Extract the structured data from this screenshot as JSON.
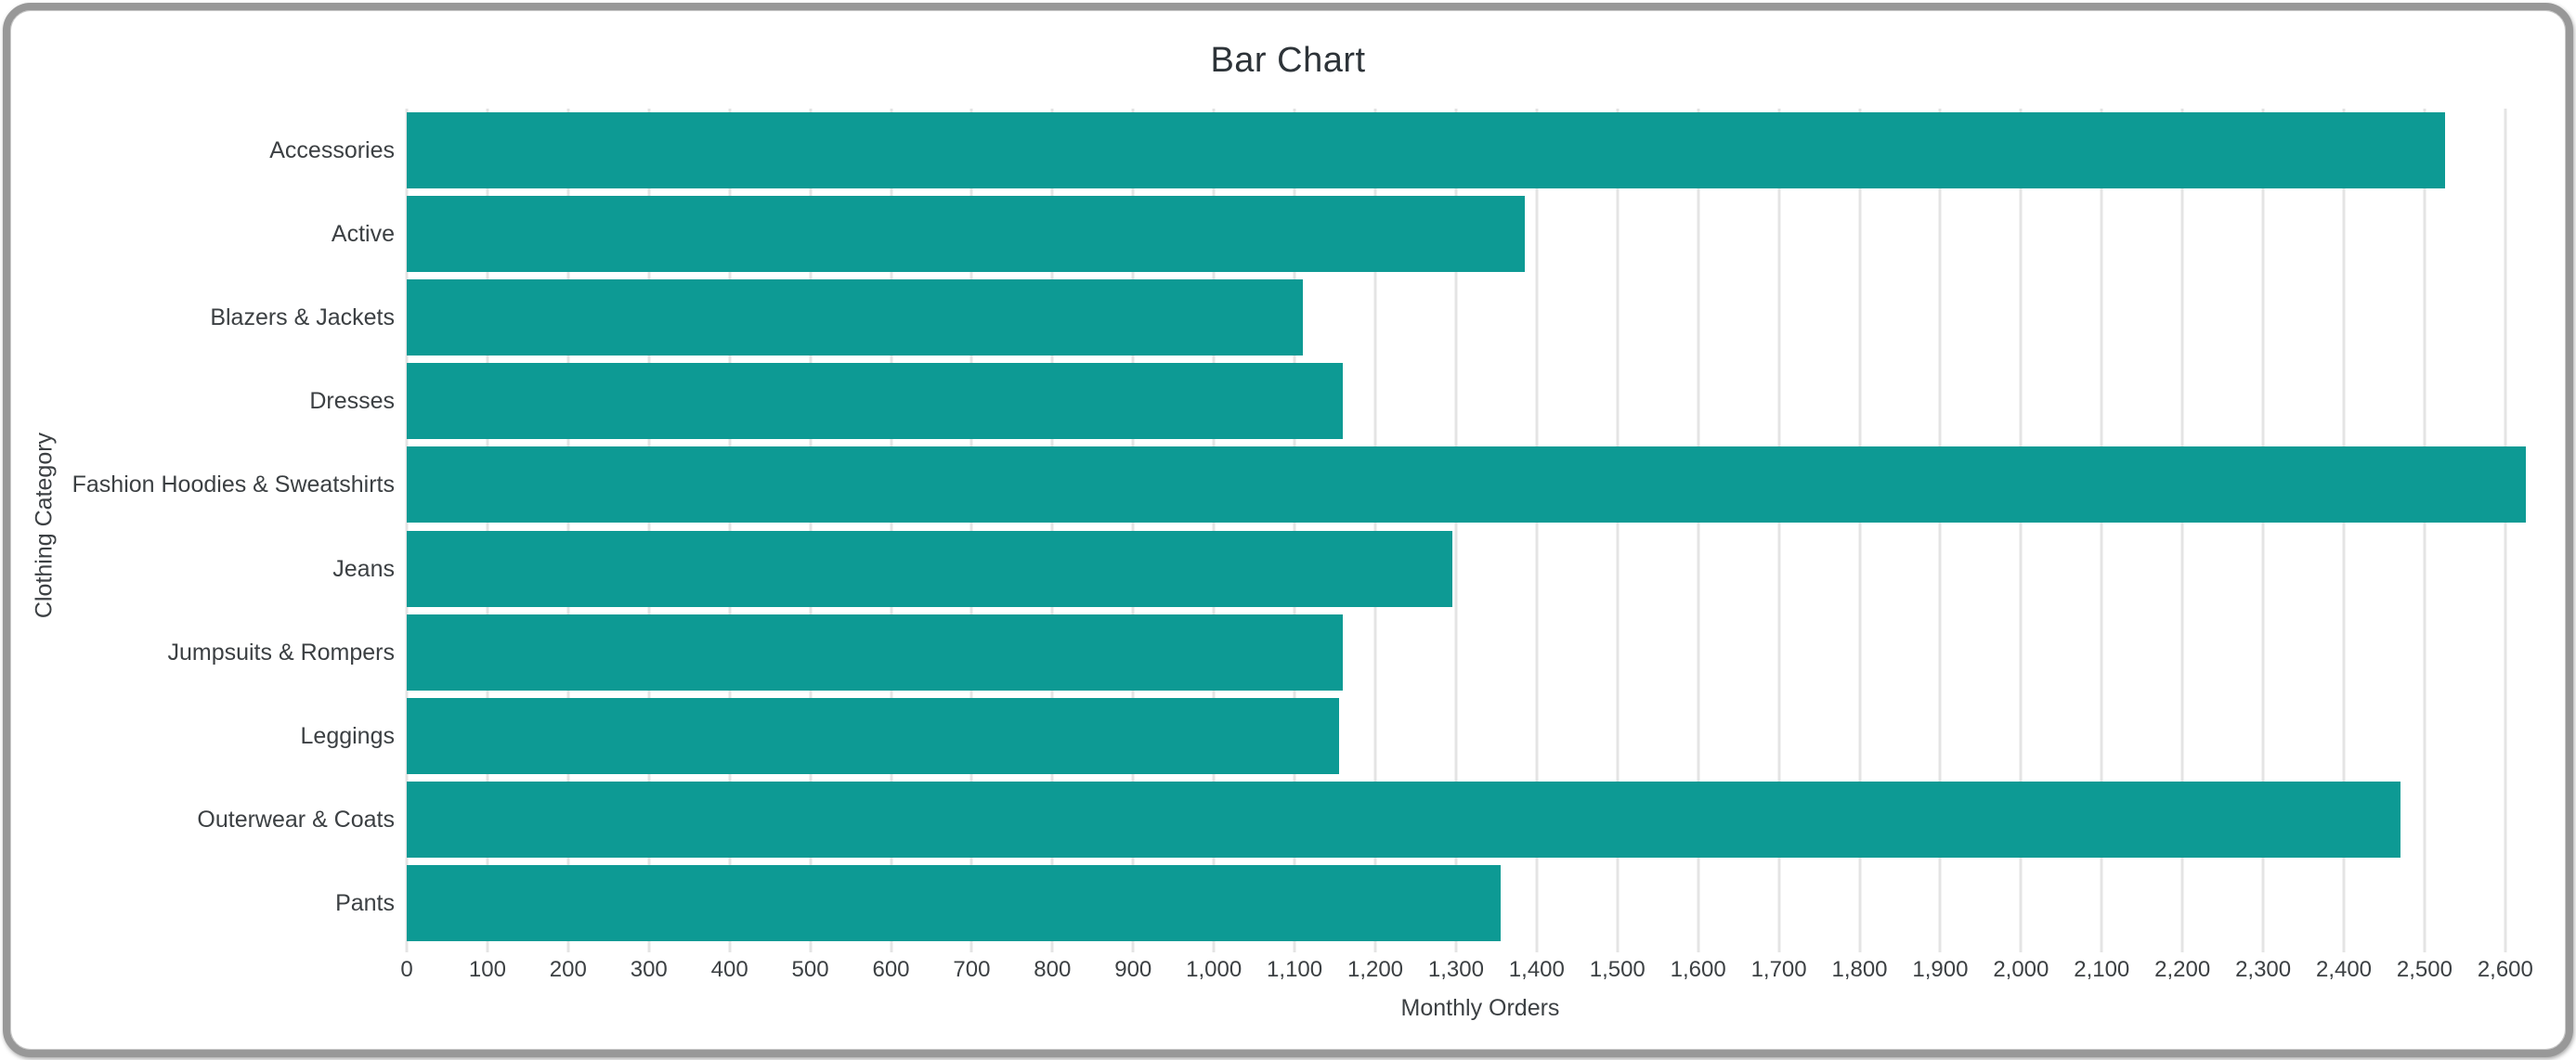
{
  "window": {
    "name": "chart-window"
  },
  "chart_data": {
    "type": "bar",
    "orientation": "horizontal",
    "title": "Bar Chart",
    "xlabel": "Monthly Orders",
    "ylabel": "Clothing Category",
    "categories": [
      "Accessories",
      "Active",
      "Blazers & Jackets",
      "Dresses",
      "Fashion Hoodies & Sweatshirts",
      "Jeans",
      "Jumpsuits & Rompers",
      "Leggings",
      "Outerwear & Coats",
      "Pants"
    ],
    "values": [
      2525,
      1385,
      1110,
      1160,
      2625,
      1295,
      1160,
      1155,
      2470,
      1355
    ],
    "xlim": [
      0,
      2660
    ],
    "xtick_values": [
      0,
      100,
      200,
      300,
      400,
      500,
      600,
      700,
      800,
      900,
      1000,
      1100,
      1200,
      1300,
      1400,
      1500,
      1600,
      1700,
      1800,
      1900,
      2000,
      2100,
      2200,
      2300,
      2400,
      2500,
      2600
    ],
    "xtick_labels": [
      "0",
      "100",
      "200",
      "300",
      "400",
      "500",
      "600",
      "700",
      "800",
      "900",
      "1,000",
      "1,100",
      "1,200",
      "1,300",
      "1,400",
      "1,500",
      "1,600",
      "1,700",
      "1,800",
      "1,900",
      "2,000",
      "2,100",
      "2,200",
      "2,300",
      "2,400",
      "2,500",
      "2,600"
    ],
    "grid": "vertical",
    "legend": "none",
    "bar_color": "#0d9a94",
    "gridline_color": "#e4e4e4",
    "title_color": "#2d3338",
    "text_color": "#3c4043"
  }
}
